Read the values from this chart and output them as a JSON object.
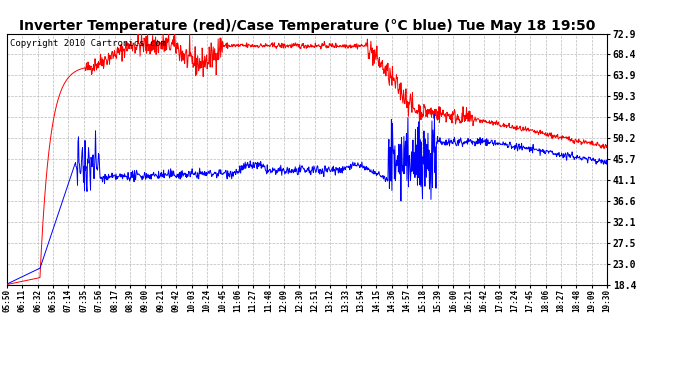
{
  "title": "Inverter Temperature (red)/Case Temperature (°C blue) Tue May 18 19:50",
  "copyright": "Copyright 2010 Cartronics.com",
  "y_ticks": [
    18.4,
    23.0,
    27.5,
    32.1,
    36.6,
    41.1,
    45.7,
    50.2,
    54.8,
    59.3,
    63.9,
    68.4,
    72.9
  ],
  "y_min": 18.4,
  "y_max": 72.9,
  "x_labels": [
    "05:50",
    "06:11",
    "06:32",
    "06:53",
    "07:14",
    "07:35",
    "07:56",
    "08:17",
    "08:39",
    "09:00",
    "09:21",
    "09:42",
    "10:03",
    "10:24",
    "10:45",
    "11:06",
    "11:27",
    "11:48",
    "12:09",
    "12:30",
    "12:51",
    "13:12",
    "13:33",
    "13:54",
    "14:15",
    "14:36",
    "14:57",
    "15:18",
    "15:39",
    "16:00",
    "16:21",
    "16:42",
    "17:03",
    "17:24",
    "17:45",
    "18:06",
    "18:27",
    "18:48",
    "19:09",
    "19:30"
  ],
  "bg_color": "#ffffff",
  "grid_color": "#bbbbbb",
  "red_line_color": "#ff0000",
  "blue_line_color": "#0000ff",
  "title_fontsize": 10,
  "copyright_fontsize": 6.5
}
